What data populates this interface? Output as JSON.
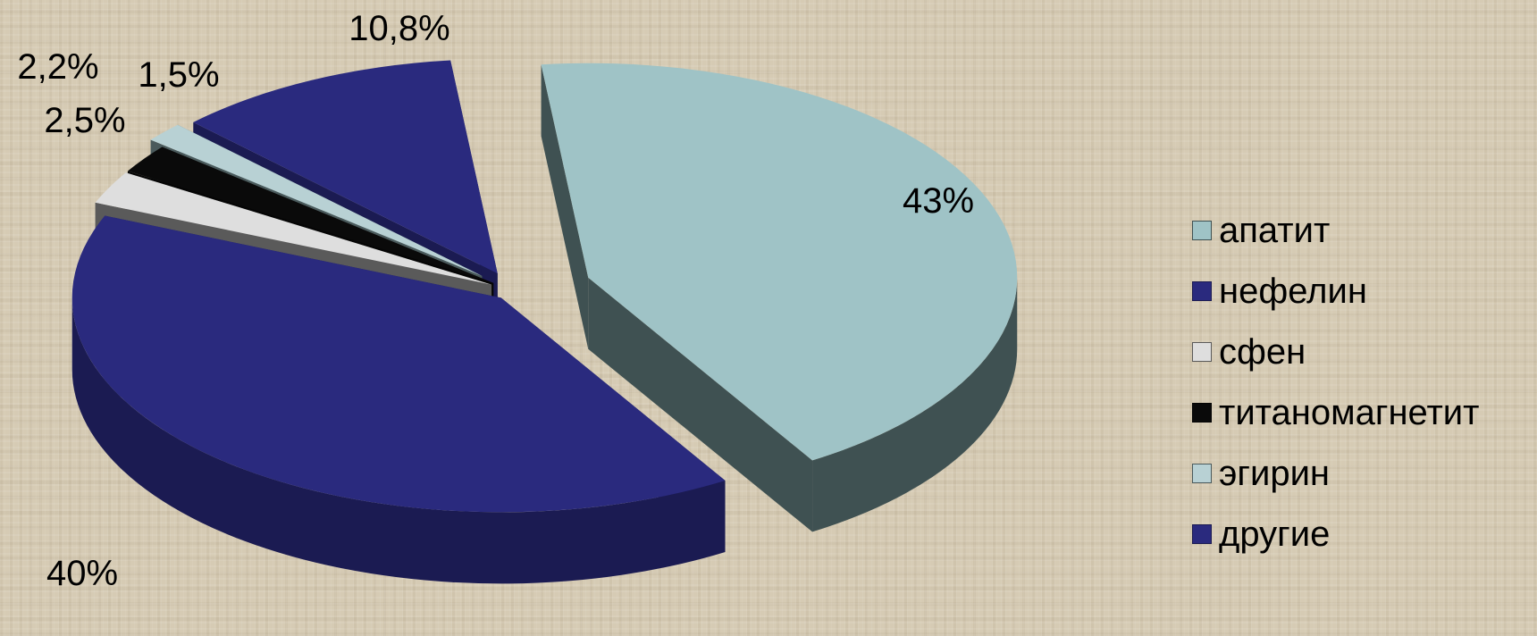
{
  "chart_data": {
    "type": "pie",
    "title": "",
    "categories": [
      "апатит",
      "нефелин",
      "сфен",
      "титаномагнетит",
      "эгирин",
      "другие"
    ],
    "values": [
      43,
      40,
      2.5,
      2.2,
      1.5,
      10.8
    ],
    "value_labels": [
      "43%",
      "40%",
      "2,5%",
      "2,2%",
      "1,5%",
      "10,8%"
    ],
    "colors": [
      "#9fc3c6",
      "#2a2a7e",
      "#dedede",
      "#0a0a0a",
      "#b8d1d4",
      "#2a2a7e"
    ],
    "side_colors": [
      "#3f5152",
      "#1b1b52",
      "#5a5a5a",
      "#050505",
      "#4a5a5c",
      "#1b1b52"
    ],
    "exploded": true,
    "three_d": true,
    "legend_position": "right"
  }
}
